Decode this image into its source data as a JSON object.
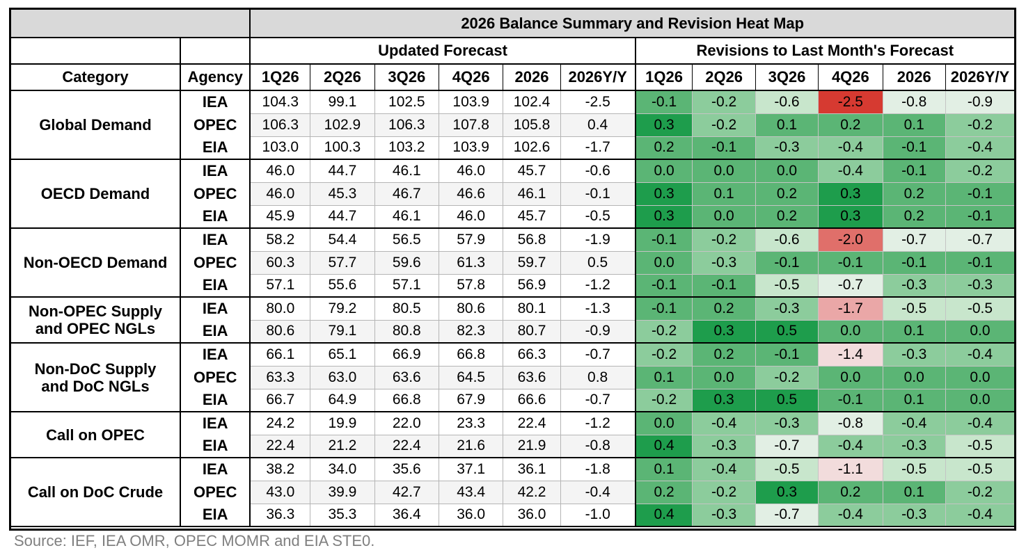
{
  "title": "2026 Balance Summary and Revision Heat Map",
  "group_headers": {
    "updated": "Updated Forecast",
    "revisions": "Revisions to Last Month's Forecast"
  },
  "columns": {
    "category": "Category",
    "agency": "Agency",
    "periods": [
      "1Q26",
      "2Q26",
      "3Q26",
      "4Q26",
      "2026",
      "2026Y/Y"
    ]
  },
  "heat_colors": {
    "strong_green": "#1e9d4c",
    "mid_green": "#5bb575",
    "light_green": "#8ccc9c",
    "pale_green": "#c8e6cc",
    "neutral": "#e2efe4",
    "pale_red": "#f2dcdc",
    "light_red": "#eaa7a7",
    "mid_red": "#e06f6a",
    "strong_red": "#d63a31"
  },
  "groups": [
    {
      "category": "Global Demand",
      "rows": [
        {
          "agency": "IEA",
          "forecast": [
            "104.3",
            "99.1",
            "102.5",
            "103.9",
            "102.4",
            "-2.5"
          ],
          "revisions": [
            "-0.1",
            "-0.2",
            "-0.6",
            "-2.5",
            "-0.8",
            "-0.9"
          ]
        },
        {
          "agency": "OPEC",
          "forecast": [
            "106.3",
            "102.9",
            "106.3",
            "107.8",
            "105.8",
            "0.4"
          ],
          "revisions": [
            "0.3",
            "-0.2",
            "0.1",
            "0.2",
            "0.1",
            "-0.2"
          ]
        },
        {
          "agency": "EIA",
          "forecast": [
            "103.0",
            "100.3",
            "103.2",
            "103.9",
            "102.6",
            "-1.7"
          ],
          "revisions": [
            "0.2",
            "-0.1",
            "-0.3",
            "-0.4",
            "-0.1",
            "-0.4"
          ]
        }
      ]
    },
    {
      "category": "OECD Demand",
      "rows": [
        {
          "agency": "IEA",
          "forecast": [
            "46.0",
            "44.7",
            "46.1",
            "46.0",
            "45.7",
            "-0.6"
          ],
          "revisions": [
            "0.0",
            "0.0",
            "0.0",
            "-0.4",
            "-0.1",
            "-0.2"
          ]
        },
        {
          "agency": "OPEC",
          "forecast": [
            "46.0",
            "45.3",
            "46.7",
            "46.6",
            "46.1",
            "-0.1"
          ],
          "revisions": [
            "0.3",
            "0.1",
            "0.2",
            "0.3",
            "0.2",
            "-0.1"
          ]
        },
        {
          "agency": "EIA",
          "forecast": [
            "45.9",
            "44.7",
            "46.1",
            "46.0",
            "45.7",
            "-0.5"
          ],
          "revisions": [
            "0.3",
            "0.0",
            "0.2",
            "0.3",
            "0.2",
            "-0.1"
          ]
        }
      ]
    },
    {
      "category": "Non-OECD Demand",
      "rows": [
        {
          "agency": "IEA",
          "forecast": [
            "58.2",
            "54.4",
            "56.5",
            "57.9",
            "56.8",
            "-1.9"
          ],
          "revisions": [
            "-0.1",
            "-0.2",
            "-0.6",
            "-2.0",
            "-0.7",
            "-0.7"
          ]
        },
        {
          "agency": "OPEC",
          "forecast": [
            "60.3",
            "57.7",
            "59.6",
            "61.3",
            "59.7",
            "0.5"
          ],
          "revisions": [
            "0.0",
            "-0.3",
            "-0.1",
            "-0.1",
            "-0.1",
            "-0.1"
          ]
        },
        {
          "agency": "EIA",
          "forecast": [
            "57.1",
            "55.6",
            "57.1",
            "57.8",
            "56.9",
            "-1.2"
          ],
          "revisions": [
            "-0.1",
            "-0.1",
            "-0.5",
            "-0.7",
            "-0.3",
            "-0.3"
          ]
        }
      ]
    },
    {
      "category": "Non-OPEC Supply and OPEC NGLs",
      "rows": [
        {
          "agency": "IEA",
          "forecast": [
            "80.0",
            "79.2",
            "80.5",
            "80.6",
            "80.1",
            "-1.3"
          ],
          "revisions": [
            "-0.1",
            "0.2",
            "-0.3",
            "-1.7",
            "-0.5",
            "-0.5"
          ]
        },
        {
          "agency": "EIA",
          "forecast": [
            "80.6",
            "79.1",
            "80.8",
            "82.3",
            "80.7",
            "-0.9"
          ],
          "revisions": [
            "-0.2",
            "0.3",
            "0.5",
            "0.0",
            "0.1",
            "0.0"
          ]
        }
      ]
    },
    {
      "category": "Non-DoC Supply and DoC NGLs",
      "rows": [
        {
          "agency": "IEA",
          "forecast": [
            "66.1",
            "65.1",
            "66.9",
            "66.8",
            "66.3",
            "-0.7"
          ],
          "revisions": [
            "-0.2",
            "0.2",
            "-0.1",
            "-1.4",
            "-0.3",
            "-0.4"
          ]
        },
        {
          "agency": "OPEC",
          "forecast": [
            "63.3",
            "63.0",
            "63.6",
            "64.5",
            "63.6",
            "0.8"
          ],
          "revisions": [
            "0.1",
            "0.0",
            "-0.2",
            "0.0",
            "0.0",
            "0.0"
          ]
        },
        {
          "agency": "EIA",
          "forecast": [
            "66.7",
            "64.9",
            "66.8",
            "67.9",
            "66.6",
            "-0.7"
          ],
          "revisions": [
            "-0.2",
            "0.3",
            "0.5",
            "-0.1",
            "0.1",
            "0.0"
          ]
        }
      ]
    },
    {
      "category": "Call on OPEC",
      "rows": [
        {
          "agency": "IEA",
          "forecast": [
            "24.2",
            "19.9",
            "22.0",
            "23.3",
            "22.4",
            "-1.2"
          ],
          "revisions": [
            "0.0",
            "-0.4",
            "-0.3",
            "-0.8",
            "-0.4",
            "-0.4"
          ]
        },
        {
          "agency": "EIA",
          "forecast": [
            "22.4",
            "21.2",
            "22.4",
            "21.6",
            "21.9",
            "-0.8"
          ],
          "revisions": [
            "0.4",
            "-0.3",
            "-0.7",
            "-0.4",
            "-0.3",
            "-0.5"
          ]
        }
      ]
    },
    {
      "category": "Call on DoC Crude",
      "rows": [
        {
          "agency": "IEA",
          "forecast": [
            "38.2",
            "34.0",
            "35.6",
            "37.1",
            "36.1",
            "-1.8"
          ],
          "revisions": [
            "0.1",
            "-0.4",
            "-0.5",
            "-1.1",
            "-0.5",
            "-0.5"
          ]
        },
        {
          "agency": "OPEC",
          "forecast": [
            "43.0",
            "39.9",
            "42.7",
            "43.4",
            "42.2",
            "-0.4"
          ],
          "revisions": [
            "0.2",
            "-0.2",
            "0.3",
            "0.2",
            "0.1",
            "-0.2"
          ]
        },
        {
          "agency": "EIA",
          "forecast": [
            "36.3",
            "35.3",
            "36.4",
            "36.0",
            "36.0",
            "-1.0"
          ],
          "revisions": [
            "0.4",
            "-0.3",
            "-0.7",
            "-0.4",
            "-0.3",
            "-0.4"
          ]
        }
      ]
    }
  ],
  "source": "Source: IEF, IEA OMR, OPEC MOMR and EIA STE0."
}
